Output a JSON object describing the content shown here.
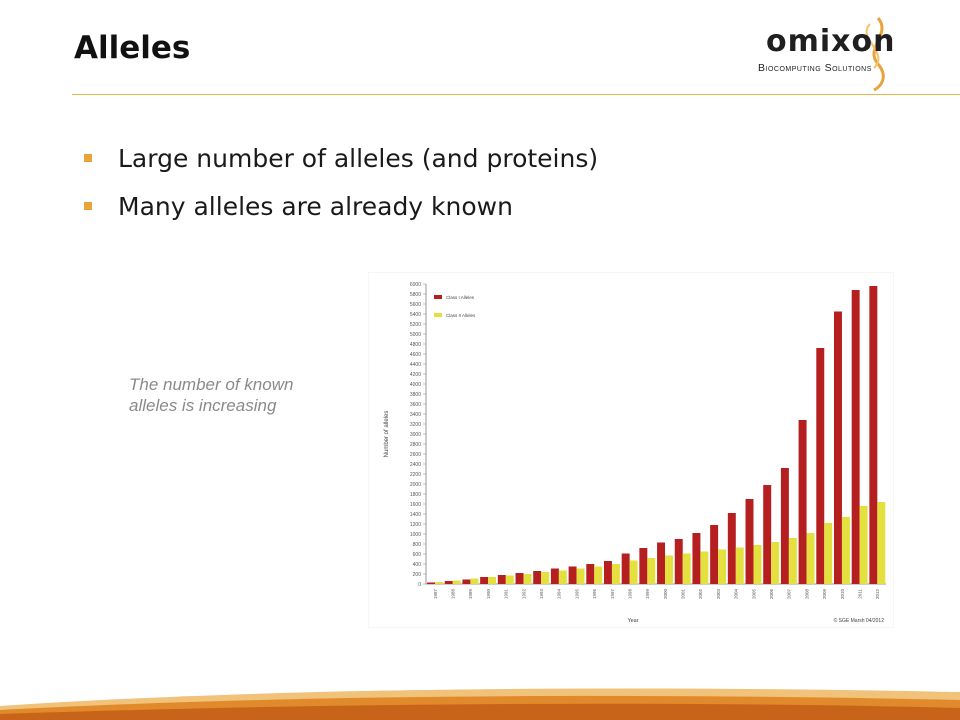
{
  "slide": {
    "title": "Alleles",
    "bullets": [
      "Large number of alleles (and proteins)",
      "Many alleles are already known"
    ],
    "caption": "The number of known alleles is increasing"
  },
  "logo": {
    "word": "omixon",
    "subtitle": "Biocomputing Solutions"
  },
  "colors": {
    "accent": "#e8a33d",
    "class1": "#b51f1f",
    "class2": "#e3e040"
  },
  "chart_data": {
    "type": "bar",
    "title": "",
    "ylabel": "Number of alleles",
    "xlabel": "Year",
    "ylim": [
      0,
      6000
    ],
    "yticks": [
      0,
      200,
      400,
      600,
      800,
      1000,
      1200,
      1400,
      1600,
      1800,
      2000,
      2200,
      2400,
      2600,
      2800,
      3000,
      3200,
      3400,
      3600,
      3800,
      4000,
      4200,
      4400,
      4600,
      4800,
      5000,
      5200,
      5400,
      5600,
      5800,
      6000
    ],
    "legend_position": "top-left",
    "categories": [
      "1987",
      "1988",
      "1989",
      "1990",
      "1991",
      "1992",
      "1993",
      "1994",
      "1995",
      "1996",
      "1997",
      "1998",
      "1999",
      "2000",
      "2001",
      "2002",
      "2003",
      "2004",
      "2005",
      "2006",
      "2007",
      "2008",
      "2009",
      "2010",
      "2011",
      "2012"
    ],
    "series": [
      {
        "name": "Class I Alleles",
        "values": [
          30,
          60,
          90,
          140,
          180,
          220,
          260,
          310,
          350,
          400,
          460,
          610,
          720,
          830,
          900,
          1020,
          1180,
          1420,
          1700,
          1980,
          2320,
          3280,
          4720,
          5450,
          5880,
          5960
        ]
      },
      {
        "name": "Class II Alleles",
        "values": [
          40,
          70,
          110,
          140,
          170,
          200,
          240,
          270,
          310,
          350,
          400,
          470,
          520,
          570,
          610,
          650,
          690,
          730,
          780,
          840,
          920,
          1020,
          1220,
          1340,
          1560,
          1640
        ]
      }
    ],
    "source_note": "© SGE Marsh 04/2012"
  }
}
